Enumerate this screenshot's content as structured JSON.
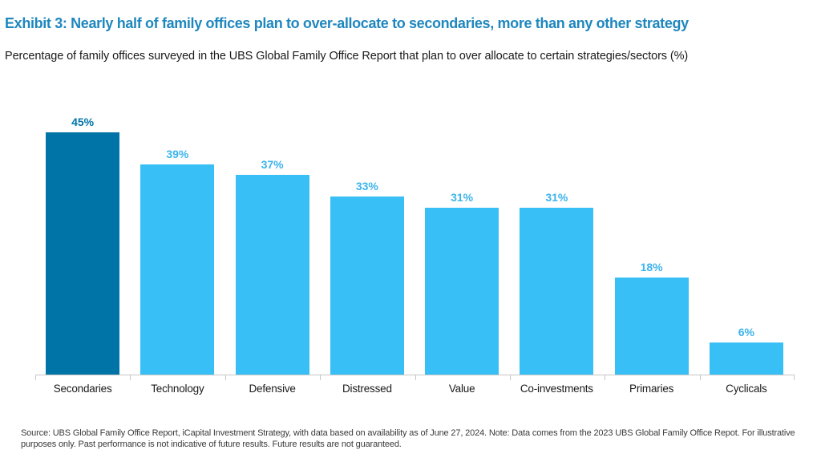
{
  "header": {
    "title": "Exhibit 3: Nearly half of family offices plan to over-allocate to secondaries, more than any other strategy",
    "subtitle": "Percentage of family offices surveyed in the UBS Global Family Office Report that plan to over allocate to certain strategies/sectors (%)"
  },
  "footnote": "Source: UBS Global Family Office Report, iCapital Investment Strategy, with data based on availability as of June 27, 2024. Note: Data comes from the 2023 UBS Global Family Office Repot. For illustrative purposes only. Past performance is not indicative of future results. Future results are not guaranteed.",
  "colors": {
    "title": "#1E87BE",
    "text": "#1a1a1a",
    "bar": "#38BFF5",
    "bar_highlight": "#0074A6",
    "value_label": "#3CB4EC",
    "value_label_highlight": "#0074A6",
    "axis": "#c6c6c6",
    "footnote": "#3a3a3a"
  },
  "chart_data": {
    "type": "bar",
    "categories": [
      "Secondaries",
      "Technology",
      "Defensive",
      "Distressed",
      "Value",
      "Co-investments",
      "Primaries",
      "Cyclicals"
    ],
    "values": [
      45,
      39,
      37,
      33,
      31,
      31,
      18,
      6
    ],
    "value_labels": [
      "45%",
      "39%",
      "37%",
      "33%",
      "31%",
      "31%",
      "18%",
      "6%"
    ],
    "highlight_index": 0,
    "title": "Percentage of family offices surveyed in the UBS Global Family Office Report that plan to over allocate to certain strategies/sectors (%)",
    "xlabel": "",
    "ylabel": "",
    "ylim": [
      0,
      50
    ],
    "grid": false,
    "legend": "none",
    "data_labels": "above-bars"
  }
}
